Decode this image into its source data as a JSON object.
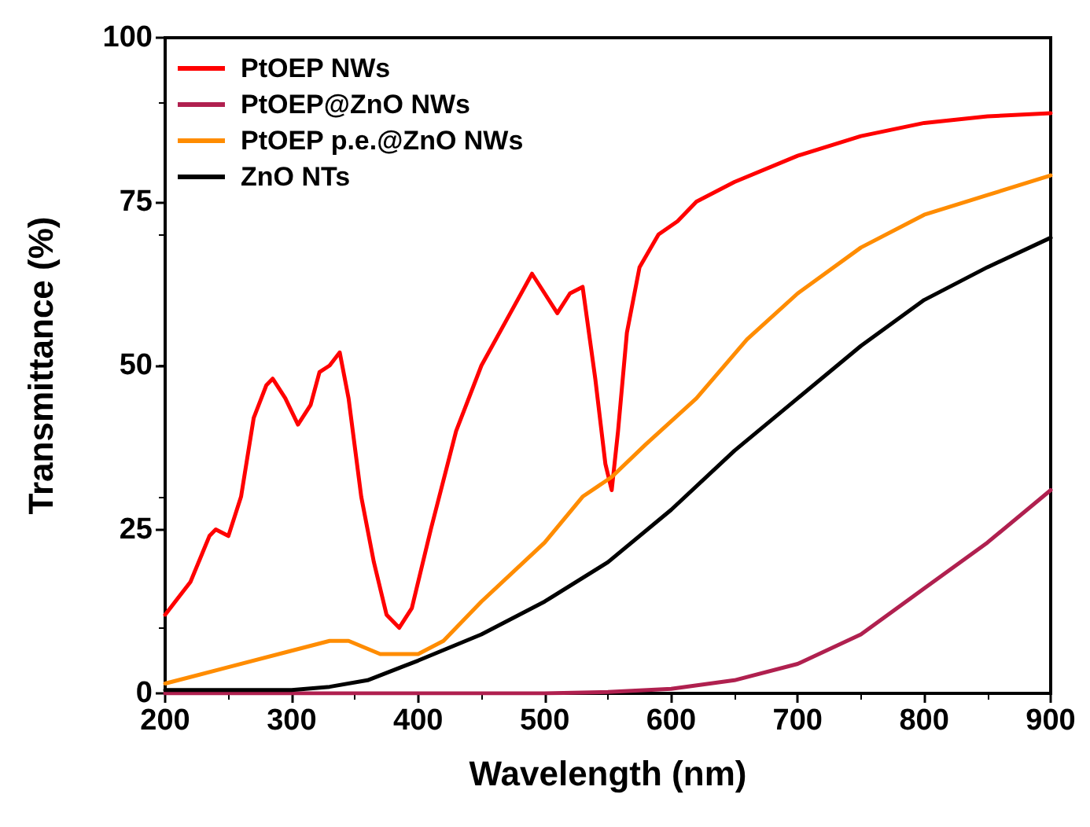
{
  "chart_data": {
    "type": "line",
    "xlabel": "Wavelength (nm)",
    "ylabel": "Transmittance (%)",
    "xlim": [
      200,
      900
    ],
    "xticks": [
      200,
      300,
      400,
      500,
      600,
      700,
      800,
      900
    ],
    "ylim": [
      0,
      100
    ],
    "yticks": [
      0,
      25,
      50,
      75,
      100
    ],
    "grid": false,
    "legend": "top left",
    "marker": "none",
    "line_style": "solid",
    "series": [
      {
        "name": "PtOEP NWs",
        "color": "#ff0000",
        "x": [
          200,
          220,
          235,
          240,
          250,
          260,
          270,
          280,
          285,
          295,
          305,
          315,
          322,
          330,
          338,
          345,
          355,
          365,
          375,
          385,
          395,
          410,
          430,
          450,
          470,
          490,
          500,
          510,
          520,
          530,
          540,
          548,
          553,
          558,
          565,
          575,
          590,
          605,
          620,
          650,
          700,
          750,
          800,
          850,
          900
        ],
        "values": [
          12,
          17,
          24,
          25,
          24,
          30,
          42,
          47,
          48,
          45,
          41,
          44,
          49,
          50,
          52,
          45,
          30,
          20,
          12,
          10,
          13,
          25,
          40,
          50,
          57,
          64,
          61,
          58,
          61,
          62,
          48,
          35,
          31,
          40,
          55,
          65,
          70,
          72,
          75,
          78,
          82,
          85,
          87,
          88,
          88.5
        ]
      },
      {
        "name": "PtOEP@ZnO NWs",
        "color": "#b0204f",
        "x": [
          200,
          500,
          550,
          600,
          650,
          700,
          750,
          800,
          850,
          900
        ],
        "values": [
          0,
          0,
          0.2,
          0.7,
          2,
          4.5,
          9,
          16,
          23,
          31
        ]
      },
      {
        "name": "PtOEP p.e.@ZnO NWs",
        "color": "#ff8c00",
        "x": [
          200,
          250,
          300,
          330,
          345,
          370,
          400,
          420,
          450,
          500,
          530,
          553,
          580,
          620,
          660,
          700,
          750,
          800,
          850,
          900
        ],
        "values": [
          1.5,
          4,
          6.5,
          8,
          8,
          6,
          6,
          8,
          14,
          23,
          30,
          33,
          38,
          45,
          54,
          61,
          68,
          73,
          76,
          79
        ]
      },
      {
        "name": "ZnO NTs",
        "color": "#000000",
        "x": [
          200,
          300,
          330,
          360,
          400,
          450,
          500,
          550,
          600,
          650,
          700,
          750,
          800,
          850,
          900
        ],
        "values": [
          0.5,
          0.5,
          1,
          2,
          5,
          9,
          14,
          20,
          28,
          37,
          45,
          53,
          60,
          65,
          69.5
        ]
      }
    ]
  }
}
